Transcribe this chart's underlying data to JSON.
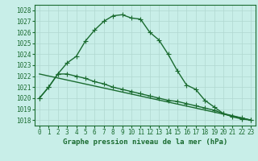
{
  "bg_color": "#c8eee8",
  "grid_color": "#b0d8d0",
  "line_color": "#1a6b30",
  "title": "Graphe pression niveau de la mer (hPa)",
  "xlim": [
    -0.5,
    23.5
  ],
  "ylim": [
    1017.5,
    1028.5
  ],
  "yticks": [
    1018,
    1019,
    1020,
    1021,
    1022,
    1023,
    1024,
    1025,
    1026,
    1027,
    1028
  ],
  "xticks": [
    0,
    1,
    2,
    3,
    4,
    5,
    6,
    7,
    8,
    9,
    10,
    11,
    12,
    13,
    14,
    15,
    16,
    17,
    18,
    19,
    20,
    21,
    22,
    23
  ],
  "line1_x": [
    0,
    1,
    2,
    3,
    4,
    5,
    6,
    7,
    8,
    9,
    10,
    11,
    12,
    13,
    14,
    15,
    16,
    17,
    18,
    19,
    20,
    21,
    22,
    23
  ],
  "line1_y": [
    1020.0,
    1021.0,
    1022.2,
    1023.2,
    1023.8,
    1025.2,
    1026.2,
    1027.0,
    1027.5,
    1027.6,
    1027.3,
    1027.2,
    1026.0,
    1025.3,
    1024.0,
    1022.5,
    1021.2,
    1020.8,
    1019.8,
    1019.2,
    1018.6,
    1018.3,
    1018.1,
    1018.0
  ],
  "line2_x": [
    0,
    1,
    2,
    3,
    4,
    5,
    6,
    7,
    8,
    9,
    10,
    11,
    12,
    13,
    14,
    15,
    16,
    17,
    18,
    19,
    20,
    21,
    22,
    23
  ],
  "line2_y": [
    1020.0,
    1021.0,
    1022.2,
    1022.2,
    1022.0,
    1021.8,
    1021.5,
    1021.3,
    1021.0,
    1020.8,
    1020.6,
    1020.4,
    1020.2,
    1020.0,
    1019.8,
    1019.7,
    1019.5,
    1019.3,
    1019.1,
    1018.9,
    1018.6,
    1018.4,
    1018.2,
    1018.0
  ],
  "line3_x": [
    0,
    23
  ],
  "line3_y": [
    1022.2,
    1018.0
  ],
  "title_fontsize": 6.5,
  "tick_fontsize": 5.5
}
